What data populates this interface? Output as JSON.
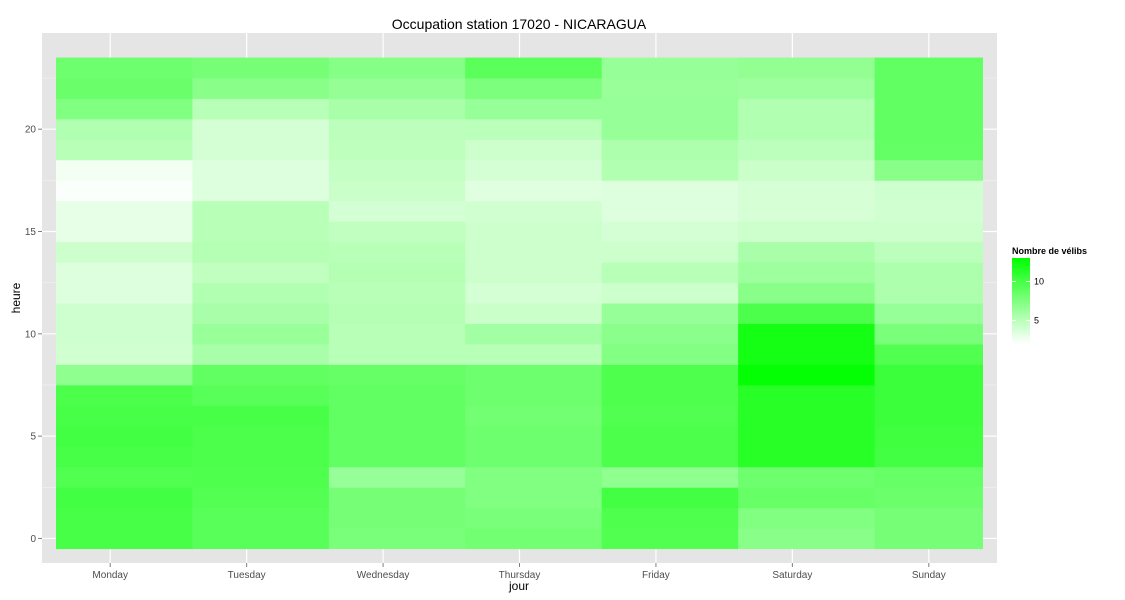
{
  "chart_data": {
    "type": "heatmap",
    "title": "Occupation station 17020 - NICARAGUA",
    "xlabel": "jour",
    "ylabel": "heure",
    "x_categories": [
      "Monday",
      "Tuesday",
      "Wednesday",
      "Thursday",
      "Friday",
      "Saturday",
      "Sunday"
    ],
    "y_values": [
      0,
      1,
      2,
      3,
      4,
      5,
      6,
      7,
      8,
      9,
      10,
      11,
      12,
      13,
      14,
      15,
      16,
      17,
      18,
      19,
      20,
      21,
      22,
      23
    ],
    "y_ticks": [
      0,
      5,
      10,
      15,
      20
    ],
    "ylim": [
      -1.2,
      24.7
    ],
    "grid": true,
    "legend": {
      "title": "Nombre de vélibs",
      "position": "right",
      "ticks": [
        5,
        10
      ],
      "range": [
        2,
        13
      ],
      "low_color": "#ffffff",
      "high_color": "#00ff00"
    },
    "values": [
      [
        9.4,
        8.5,
        6.8,
        7.2,
        8.9,
        6.0,
        7.0
      ],
      [
        9.4,
        8.5,
        7.0,
        6.8,
        9.0,
        6.5,
        7.0
      ],
      [
        9.6,
        8.7,
        7.0,
        6.5,
        9.6,
        7.8,
        7.5
      ],
      [
        8.9,
        9.0,
        5.3,
        6.5,
        5.7,
        7.4,
        7.8
      ],
      [
        9.4,
        9.2,
        8.0,
        7.4,
        9.2,
        11.0,
        9.6
      ],
      [
        9.6,
        9.2,
        8.0,
        7.4,
        9.2,
        11.0,
        9.8
      ],
      [
        9.4,
        9.4,
        8.0,
        7.2,
        8.9,
        11.0,
        10.0
      ],
      [
        9.2,
        8.5,
        8.0,
        7.4,
        9.0,
        11.0,
        10.0
      ],
      [
        5.7,
        8.0,
        7.8,
        7.4,
        9.0,
        12.8,
        10.0
      ],
      [
        2.4,
        4.4,
        3.6,
        3.6,
        6.3,
        12.0,
        8.9
      ],
      [
        2.5,
        5.2,
        3.6,
        4.7,
        5.9,
        12.0,
        6.8
      ],
      [
        2.5,
        4.4,
        3.8,
        2.7,
        5.3,
        9.2,
        5.3
      ],
      [
        1.7,
        4.0,
        3.6,
        2.2,
        2.6,
        6.0,
        4.2
      ],
      [
        1.7,
        3.2,
        3.8,
        2.6,
        3.6,
        5.0,
        4.2
      ],
      [
        2.6,
        3.8,
        3.6,
        2.6,
        2.6,
        4.4,
        3.4
      ],
      [
        1.2,
        3.6,
        3.2,
        2.6,
        2.2,
        2.6,
        2.6
      ],
      [
        1.2,
        3.6,
        2.2,
        2.4,
        1.7,
        2.1,
        2.4
      ],
      [
        0.2,
        1.7,
        2.7,
        1.6,
        1.7,
        2.1,
        2.5
      ],
      [
        0.6,
        1.7,
        3.0,
        2.2,
        4.0,
        2.7,
        6.0
      ],
      [
        3.6,
        2.2,
        3.3,
        2.6,
        4.2,
        3.4,
        7.9
      ],
      [
        4.0,
        2.2,
        3.4,
        3.5,
        5.3,
        4.0,
        8.0
      ],
      [
        6.4,
        3.6,
        4.4,
        5.3,
        5.3,
        4.0,
        8.0
      ],
      [
        7.6,
        6.0,
        5.4,
        6.7,
        5.2,
        5.0,
        8.0
      ],
      [
        7.4,
        7.0,
        6.2,
        8.4,
        5.3,
        5.5,
        8.0
      ]
    ]
  }
}
